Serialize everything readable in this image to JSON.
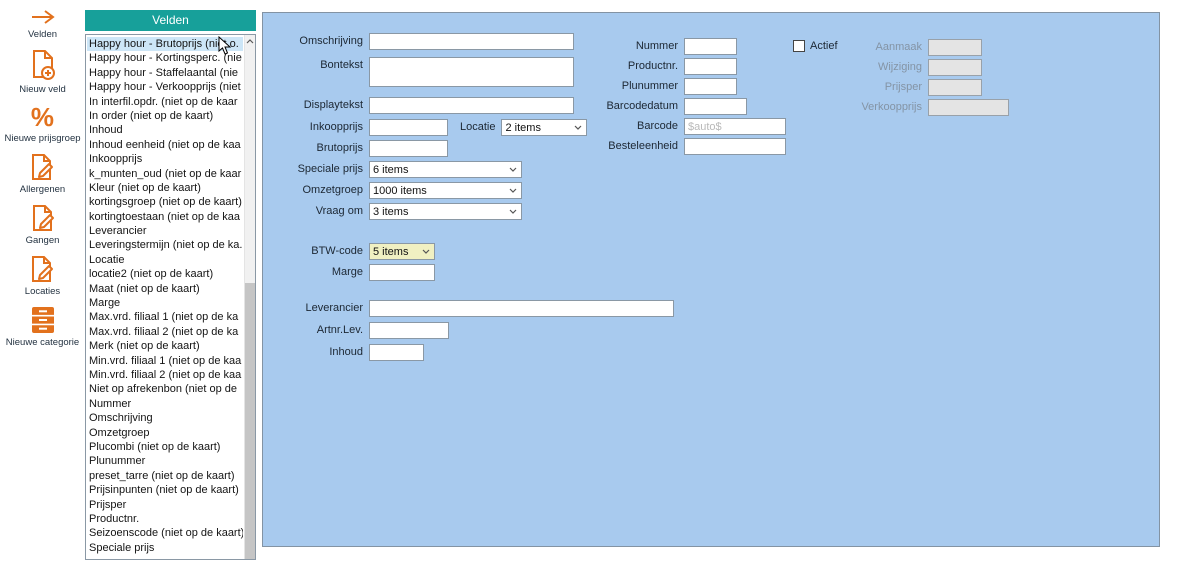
{
  "sidebar": {
    "items": [
      {
        "label": "Velden",
        "icon": "arrow-right-icon"
      },
      {
        "label": "Nieuw veld",
        "icon": "document-add-icon"
      },
      {
        "label": "Nieuwe prijsgroep",
        "icon": "percent-icon"
      },
      {
        "label": "Allergenen",
        "icon": "document-edit-icon"
      },
      {
        "label": "Gangen",
        "icon": "document-edit-icon"
      },
      {
        "label": "Locaties",
        "icon": "document-edit-icon"
      },
      {
        "label": "Nieuwe categorie",
        "icon": "drawer-icon"
      }
    ]
  },
  "fields_panel": {
    "title": "Velden",
    "items": [
      {
        "label": "Happy hour - Brutoprijs (niet o.",
        "selected": true
      },
      {
        "label": "Happy hour - Kortingsperc. (nie",
        "selected": false
      },
      {
        "label": "Happy hour - Staffelaantal (nie",
        "selected": false
      },
      {
        "label": "Happy hour - Verkoopprijs (niet",
        "selected": false
      },
      {
        "label": "In interfil.opdr. (niet op de kaar",
        "selected": false
      },
      {
        "label": "In order (niet op de kaart)",
        "selected": false
      },
      {
        "label": "Inhoud",
        "selected": false
      },
      {
        "label": "Inhoud eenheid (niet op de kaa",
        "selected": false
      },
      {
        "label": "Inkoopprijs",
        "selected": false
      },
      {
        "label": "k_munten_oud (niet op de kaar",
        "selected": false
      },
      {
        "label": "Kleur (niet op de kaart)",
        "selected": false
      },
      {
        "label": "kortingsgroep (niet op de kaart)",
        "selected": false
      },
      {
        "label": "kortingtoestaan (niet op de kaa",
        "selected": false
      },
      {
        "label": "Leverancier",
        "selected": false
      },
      {
        "label": "Leveringstermijn (niet op de ka.",
        "selected": false
      },
      {
        "label": "Locatie",
        "selected": false
      },
      {
        "label": "locatie2 (niet op de kaart)",
        "selected": false
      },
      {
        "label": "Maat (niet op de kaart)",
        "selected": false
      },
      {
        "label": "Marge",
        "selected": false
      },
      {
        "label": "Max.vrd. filiaal 1 (niet op de ka",
        "selected": false
      },
      {
        "label": "Max.vrd. filiaal 2 (niet op de ka",
        "selected": false
      },
      {
        "label": "Merk (niet op de kaart)",
        "selected": false
      },
      {
        "label": "Min.vrd. filiaal 1 (niet op de kaa",
        "selected": false
      },
      {
        "label": "Min.vrd. filiaal 2 (niet op de kaa",
        "selected": false
      },
      {
        "label": "Niet op afrekenbon (niet op de",
        "selected": false
      },
      {
        "label": "Nummer",
        "selected": false
      },
      {
        "label": "Omschrijving",
        "selected": false
      },
      {
        "label": "Omzetgroep",
        "selected": false
      },
      {
        "label": "Plucombi (niet op de kaart)",
        "selected": false
      },
      {
        "label": "Plunummer",
        "selected": false
      },
      {
        "label": "preset_tarre (niet op de kaart)",
        "selected": false
      },
      {
        "label": "Prijsinpunten (niet op de kaart)",
        "selected": false
      },
      {
        "label": "Prijsper",
        "selected": false
      },
      {
        "label": "Productnr.",
        "selected": false
      },
      {
        "label": "Seizoenscode (niet op de kaart)",
        "selected": false
      },
      {
        "label": "Speciale prijs",
        "selected": false
      }
    ]
  },
  "form": {
    "omschrijving": {
      "label": "Omschrijving",
      "value": ""
    },
    "bontekst": {
      "label": "Bontekst",
      "value": ""
    },
    "displaytekst": {
      "label": "Displaytekst",
      "value": ""
    },
    "inkoopprijs": {
      "label": "Inkoopprijs",
      "value": ""
    },
    "locatie": {
      "label": "Locatie",
      "value": "2 items"
    },
    "brutoprijs": {
      "label": "Brutoprijs",
      "value": ""
    },
    "speciale_prijs": {
      "label": "Speciale prijs",
      "value": "6 items"
    },
    "omzetgroep": {
      "label": "Omzetgroep",
      "value": "1000 items"
    },
    "vraag_om": {
      "label": "Vraag om",
      "value": "3 items"
    },
    "btw_code": {
      "label": "BTW-code",
      "value": "5 items"
    },
    "marge": {
      "label": "Marge",
      "value": ""
    },
    "leverancier": {
      "label": "Leverancier",
      "value": ""
    },
    "artnr_lev": {
      "label": "Artnr.Lev.",
      "value": ""
    },
    "inhoud": {
      "label": "Inhoud",
      "value": ""
    },
    "nummer": {
      "label": "Nummer",
      "value": ""
    },
    "productnr": {
      "label": "Productnr.",
      "value": ""
    },
    "plunummer": {
      "label": "Plunummer",
      "value": ""
    },
    "barcodedatum": {
      "label": "Barcodedatum",
      "value": ""
    },
    "barcode": {
      "label": "Barcode",
      "value": "",
      "placeholder": "$auto$"
    },
    "besteleenheid": {
      "label": "Besteleenheid",
      "value": ""
    },
    "actief": {
      "label": "Actief",
      "checked": false
    },
    "aanmaak": {
      "label": "Aanmaak",
      "value": "",
      "disabled": true
    },
    "wijziging": {
      "label": "Wijziging",
      "value": "",
      "disabled": true
    },
    "prijsper": {
      "label": "Prijsper",
      "value": "",
      "disabled": true
    },
    "verkoopprijs": {
      "label": "Verkoopprijs",
      "value": "",
      "disabled": true
    }
  },
  "colors": {
    "header_teal": "#17a09a",
    "panel_blue": "#a8caee",
    "icon_orange": "#e2711d",
    "btw_highlight_yellow": "#f0f0c2",
    "selected_item_blue": "#cde6f7"
  }
}
